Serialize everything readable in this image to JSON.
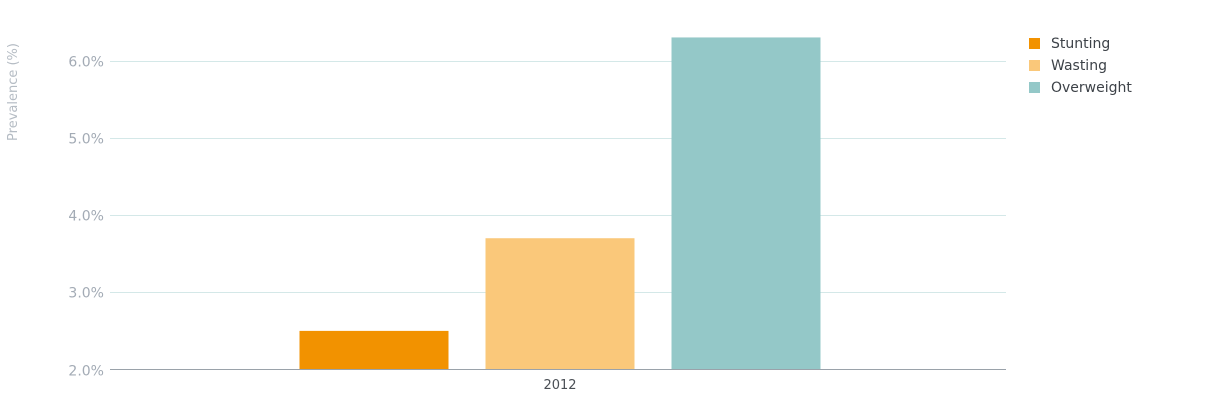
{
  "chart_data": {
    "type": "bar",
    "categories": [
      "2012"
    ],
    "series": [
      {
        "name": "Stunting",
        "values": [
          2.5
        ],
        "color": "#f29200"
      },
      {
        "name": "Wasting",
        "values": [
          3.7
        ],
        "color": "#fac87a"
      },
      {
        "name": "Overweight",
        "values": [
          6.3
        ],
        "color": "#94c8c8"
      }
    ],
    "ylabel": "Prevalence (%)",
    "xlabel": "",
    "ylim": [
      2.0,
      6.5
    ],
    "yticks": [
      2.0,
      3.0,
      4.0,
      5.0,
      6.0
    ],
    "ytick_labels": [
      "2.0%",
      "3.0%",
      "4.0%",
      "5.0%",
      "6.0%"
    ],
    "grid": true,
    "legend": "top-right",
    "colors": {
      "grid": "#d4e8e8",
      "axis": "#9aa2aa"
    }
  }
}
